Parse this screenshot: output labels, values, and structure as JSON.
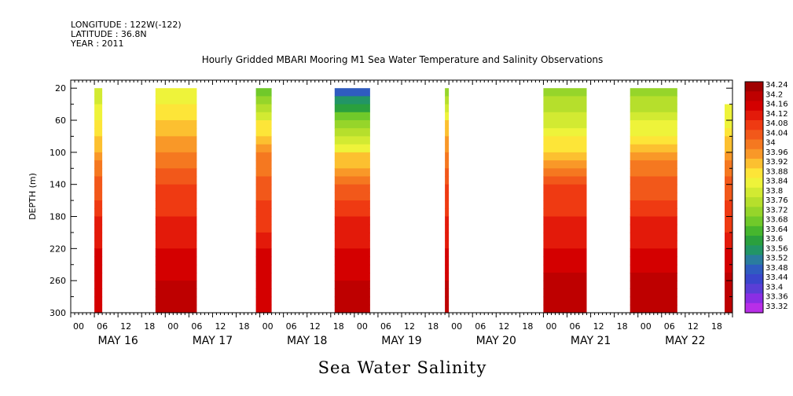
{
  "header": {
    "longitude": "LONGITUDE : 122W(-122)",
    "latitude": "LATITUDE : 36.8N",
    "year": "YEAR : 2011"
  },
  "chart_data": {
    "type": "heatmap",
    "title": "Hourly Gridded MBARI Mooring M1 Sea Water Temperature and Salinity Observations",
    "xlabel": "Sea Water Salinity",
    "ylabel": "DEPTH (m)",
    "ylim": [
      300,
      10
    ],
    "yticks": [
      20,
      60,
      100,
      140,
      180,
      220,
      260,
      300
    ],
    "xlim_hours": [
      0,
      168
    ],
    "hour_tick_labels": [
      "00",
      "06",
      "12",
      "18",
      "00",
      "06",
      "12",
      "18",
      "00",
      "06",
      "12",
      "18",
      "00",
      "06",
      "12",
      "18",
      "00",
      "06",
      "12",
      "18",
      "00",
      "06",
      "12",
      "18",
      "00",
      "06",
      "12",
      "18"
    ],
    "day_labels": [
      "MAY 16",
      "MAY 17",
      "MAY 18",
      "MAY 19",
      "MAY 20",
      "MAY 21",
      "MAY 22"
    ],
    "colorbar": {
      "levels": [
        "34.24",
        "34.2",
        "34.16",
        "34.12",
        "34.08",
        "34.04",
        "34",
        "33.96",
        "33.92",
        "33.88",
        "33.84",
        "33.8",
        "33.76",
        "33.72",
        "33.68",
        "33.64",
        "33.6",
        "33.56",
        "33.52",
        "33.48",
        "33.44",
        "33.4",
        "33.36",
        "33.32"
      ],
      "colors": [
        "#a00000",
        "#be0000",
        "#d40000",
        "#e31a0a",
        "#ef3a12",
        "#f2581a",
        "#f57820",
        "#f99828",
        "#fcc030",
        "#fde538",
        "#eef33a",
        "#d2ea32",
        "#b6df2c",
        "#96d52a",
        "#70c92a",
        "#46b62e",
        "#2aa03e",
        "#229566",
        "#2a7c9e",
        "#2f5cc0",
        "#3a46cc",
        "#5a3ed6",
        "#8a2ee4",
        "#b82ee8"
      ]
    },
    "series": [
      {
        "start_hour": 6,
        "end_hour": 8,
        "top_depth": 20,
        "mean_profile": [
          33.8,
          33.86,
          33.96,
          34.04,
          34.1,
          34.14,
          34.16
        ]
      },
      {
        "start_hour": 21.5,
        "end_hour": 32,
        "top_depth": 20,
        "mean_profile": [
          33.82,
          33.9,
          34.0,
          34.06,
          34.1,
          34.14,
          34.18
        ]
      },
      {
        "start_hour": 47,
        "end_hour": 51,
        "top_depth": 20,
        "mean_profile": [
          33.68,
          33.86,
          33.98,
          34.04,
          34.08,
          34.14,
          34.16
        ]
      },
      {
        "start_hour": 67,
        "end_hour": 76,
        "top_depth": 20,
        "mean_profile": [
          33.48,
          33.72,
          33.9,
          34.04,
          34.1,
          34.14,
          34.18
        ]
      },
      {
        "start_hour": 95,
        "end_hour": 96,
        "top_depth": 20,
        "mean_profile": [
          33.7,
          33.9,
          34.0,
          34.06,
          34.1,
          34.14,
          34.18
        ]
      },
      {
        "start_hour": 120,
        "end_hour": 131,
        "top_depth": 20,
        "mean_profile": [
          33.72,
          33.8,
          33.92,
          34.06,
          34.1,
          34.14,
          34.2
        ]
      },
      {
        "start_hour": 142,
        "end_hour": 154,
        "top_depth": 20,
        "mean_profile": [
          33.72,
          33.82,
          33.96,
          34.04,
          34.1,
          34.14,
          34.2
        ]
      },
      {
        "start_hour": 166,
        "end_hour": 168,
        "top_depth": 40,
        "mean_profile": [
          33.82,
          33.84,
          33.96,
          34.04,
          34.08,
          34.14,
          34.2
        ]
      }
    ]
  }
}
